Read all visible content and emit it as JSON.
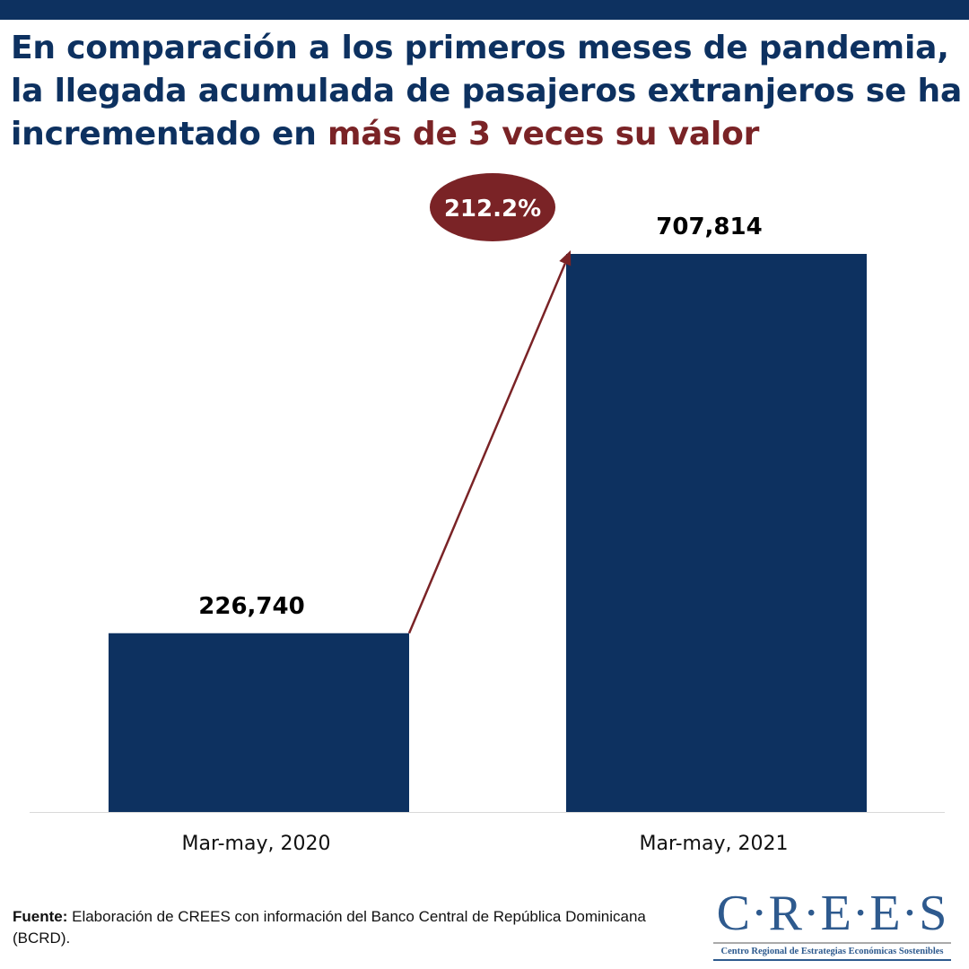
{
  "title": {
    "part1": "En comparación a los primeros meses de pandemia, la llegada acumulada de pasajeros extranjeros se ha incrementado en ",
    "highlight": "más de 3 veces su valor"
  },
  "chart_data": {
    "type": "bar",
    "categories": [
      "Mar-may, 2020",
      "Mar-may, 2021"
    ],
    "values": [
      226740,
      707814
    ],
    "value_labels": [
      "226,740",
      "707,814"
    ],
    "ylim": [
      0,
      800000
    ],
    "annotation": "212.2%",
    "colors": {
      "bar": "#0d3160",
      "accent": "#7a2326"
    }
  },
  "source": {
    "label": "Fuente:",
    "text": " Elaboración de CREES con información del Banco Central de República Dominicana (BCRD)."
  },
  "logo": {
    "name": "C·R·E·E·S",
    "subtitle": "Centro Regional de Estrategias Económicas Sostenibles"
  }
}
